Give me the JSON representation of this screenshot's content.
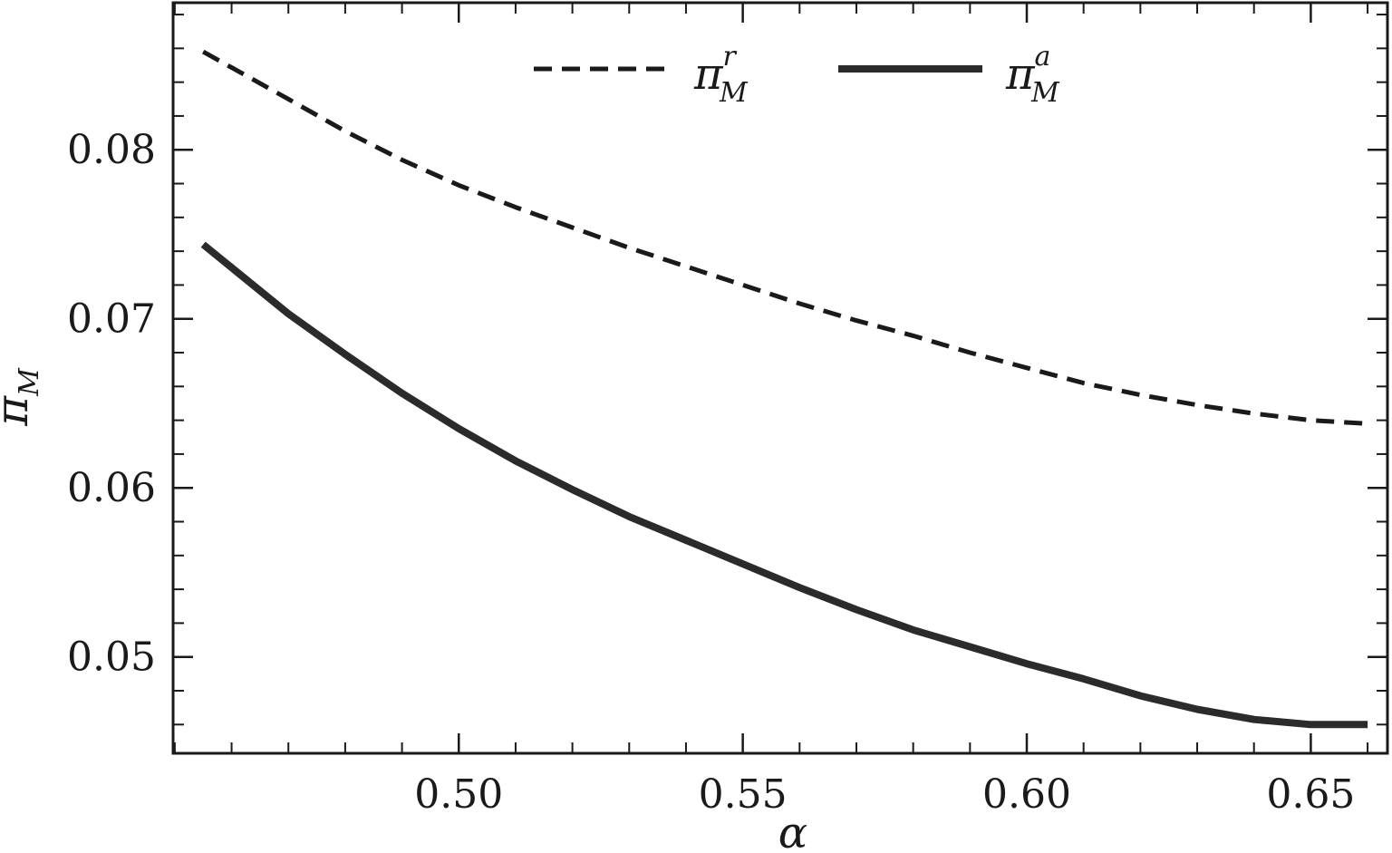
{
  "chart_data": {
    "type": "line",
    "xlabel": "α",
    "ylabel": "π",
    "ylabel_sub": "M",
    "xlim": [
      0.4497,
      0.6635
    ],
    "ylim": [
      0.0443,
      0.0887
    ],
    "x_ticks": [
      0.5,
      0.55,
      0.6,
      0.65
    ],
    "x_tick_labels": [
      "0.50",
      "0.55",
      "0.60",
      "0.65"
    ],
    "x_minor_step": 0.01,
    "y_ticks": [
      0.05,
      0.06,
      0.07,
      0.08
    ],
    "y_tick_labels": [
      "0.05",
      "0.06",
      "0.07",
      "0.08"
    ],
    "y_minor_step": 0.002,
    "grid": false,
    "legend_position": "top-center",
    "series": [
      {
        "name": "π^r_M",
        "symbol": "π",
        "sub": "M",
        "sup": "r",
        "style": "dashed",
        "color": "#1a1a1a",
        "x": [
          0.455,
          0.47,
          0.48,
          0.49,
          0.5,
          0.51,
          0.52,
          0.53,
          0.54,
          0.55,
          0.56,
          0.57,
          0.58,
          0.59,
          0.6,
          0.61,
          0.62,
          0.63,
          0.64,
          0.65,
          0.66
        ],
        "y": [
          0.0858,
          0.083,
          0.0811,
          0.0794,
          0.0779,
          0.0766,
          0.0754,
          0.0742,
          0.0731,
          0.072,
          0.0709,
          0.0699,
          0.069,
          0.068,
          0.0671,
          0.0662,
          0.0655,
          0.0649,
          0.0644,
          0.064,
          0.0638
        ]
      },
      {
        "name": "π^a_M",
        "symbol": "π",
        "sub": "M",
        "sup": "a",
        "style": "solid",
        "color": "#2b2b2b",
        "x": [
          0.455,
          0.47,
          0.48,
          0.49,
          0.5,
          0.51,
          0.52,
          0.53,
          0.54,
          0.55,
          0.56,
          0.57,
          0.58,
          0.59,
          0.6,
          0.61,
          0.62,
          0.63,
          0.64,
          0.65,
          0.66
        ],
        "y": [
          0.0744,
          0.0703,
          0.0679,
          0.0656,
          0.0635,
          0.0616,
          0.0599,
          0.0583,
          0.0569,
          0.0555,
          0.0541,
          0.0528,
          0.0516,
          0.0506,
          0.0496,
          0.0487,
          0.0477,
          0.0469,
          0.0463,
          0.046,
          0.046
        ]
      }
    ]
  }
}
